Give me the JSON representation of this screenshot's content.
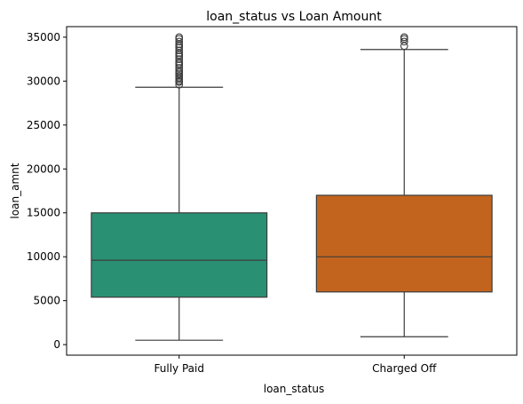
{
  "chart_data": {
    "type": "box",
    "title": "loan_status vs Loan Amount",
    "xlabel": "loan_status",
    "ylabel": "loan_amnt",
    "ylim": [
      -1200,
      36200
    ],
    "yticks": [
      0,
      5000,
      10000,
      15000,
      20000,
      25000,
      30000,
      35000
    ],
    "grid": false,
    "categories": [
      "Fully Paid",
      "Charged Off"
    ],
    "boxes": [
      {
        "category": "Fully Paid",
        "color": "#2a9073",
        "whisker_low": 500,
        "q1": 5400,
        "median": 9600,
        "q3": 15000,
        "whisker_high": 29300,
        "outliers": [
          29600,
          29900,
          30000,
          30200,
          30400,
          30600,
          30800,
          31000,
          31200,
          31500,
          31800,
          32000,
          32200,
          32500,
          32800,
          33000,
          33200,
          33500,
          33800,
          34000,
          34200,
          34500,
          34800,
          35000
        ]
      },
      {
        "category": "Charged Off",
        "color": "#c3641e",
        "whisker_low": 900,
        "q1": 6000,
        "median": 10000,
        "q3": 17000,
        "whisker_high": 33600,
        "outliers": [
          34000,
          34500,
          34800,
          35000
        ]
      }
    ]
  }
}
